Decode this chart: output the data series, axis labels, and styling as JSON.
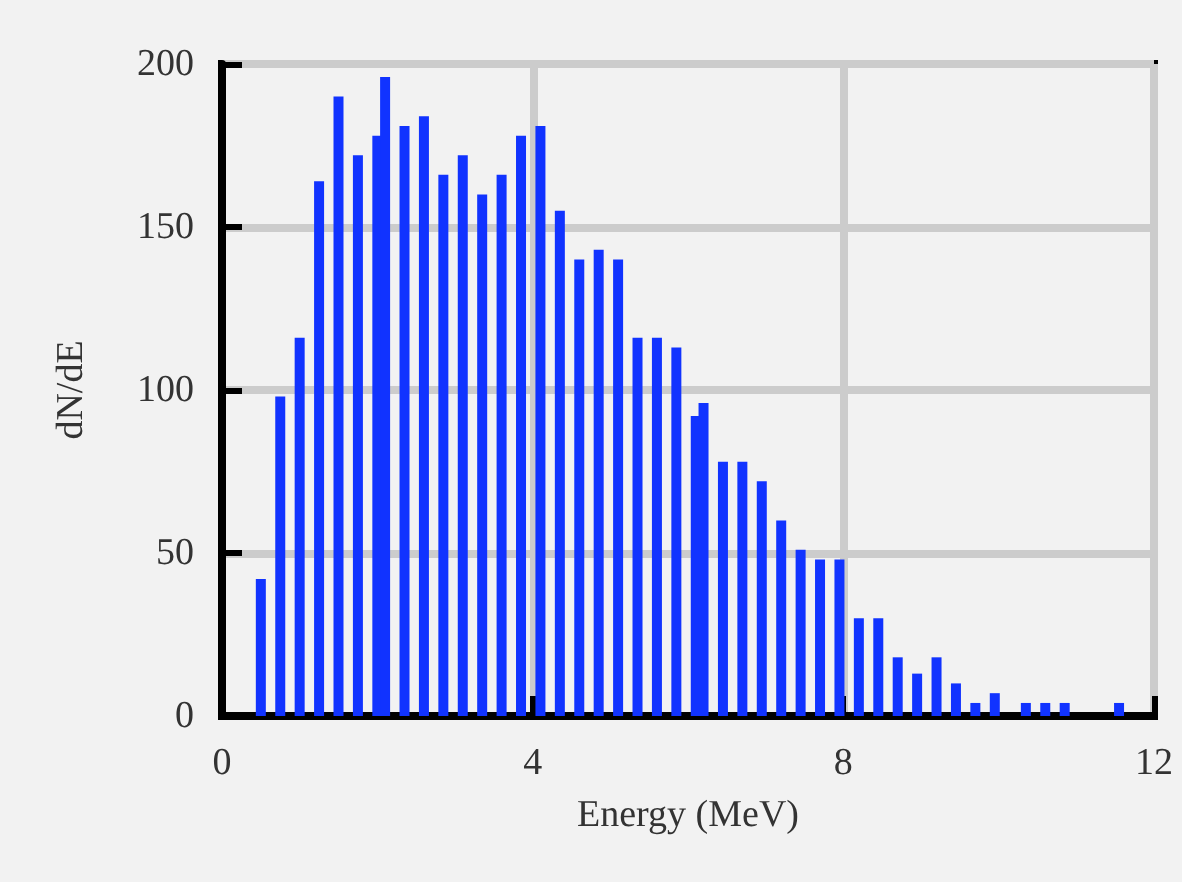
{
  "chart_data": {
    "type": "bar",
    "xlabel": "Energy (MeV)",
    "ylabel": "dN/dE",
    "x": [
      0.5,
      0.75,
      1.0,
      1.25,
      1.5,
      1.75,
      2.0,
      2.1,
      2.35,
      2.6,
      2.85,
      3.1,
      3.35,
      3.6,
      3.85,
      4.1,
      4.35,
      4.6,
      4.85,
      5.1,
      5.35,
      5.6,
      5.85,
      6.1,
      6.2,
      6.45,
      6.7,
      6.95,
      7.2,
      7.45,
      7.7,
      7.95,
      8.2,
      8.45,
      8.7,
      8.95,
      9.2,
      9.45,
      9.7,
      9.95,
      10.35,
      10.6,
      10.85,
      11.55
    ],
    "values": [
      42,
      98,
      116,
      164,
      190,
      172,
      178,
      196,
      181,
      184,
      166,
      172,
      160,
      166,
      178,
      181,
      155,
      140,
      143,
      140,
      116,
      116,
      113,
      92,
      96,
      78,
      78,
      72,
      60,
      51,
      48,
      48,
      30,
      30,
      18,
      13,
      18,
      10,
      4,
      7,
      4,
      4,
      4,
      4
    ],
    "color": "#1133ff",
    "xlim": [
      0,
      12
    ],
    "xticks": [
      0,
      4,
      8,
      12
    ],
    "ylim": [
      0,
      200
    ],
    "yticks": [
      0,
      50,
      100,
      150,
      200
    ],
    "grid": true
  }
}
